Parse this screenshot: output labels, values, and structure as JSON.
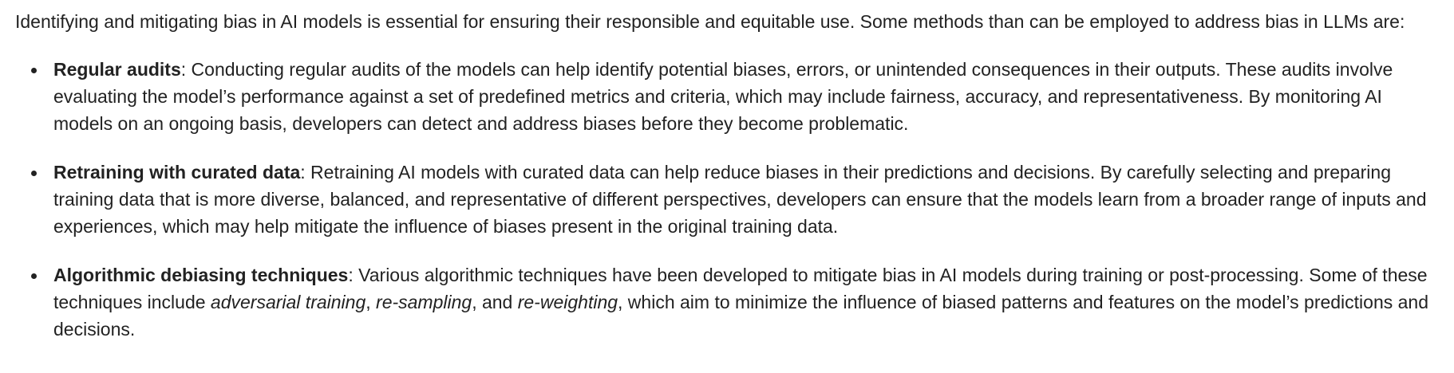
{
  "intro": "Identifying and mitigating bias in AI models is essential for ensuring their responsible and equitable use. Some methods than can be employed to address bias in LLMs are:",
  "items": [
    {
      "term": "Regular audits",
      "text": ": Conducting regular audits of the models can help identify potential biases, errors, or unintended consequences in their outputs. These audits involve evaluating the model’s performance against a set of predefined metrics and criteria, which may include fairness, accuracy, and representativeness. By monitoring AI models on an ongoing basis, developers can detect and address biases before they become problematic."
    },
    {
      "term": "Retraining with curated data",
      "text": ": Retraining AI models with curated data can help reduce biases in their predictions and decisions. By carefully selecting and preparing training data that is more diverse, balanced, and representative of different perspectives, developers can ensure that the models learn from a broader range of inputs and experiences, which may help mitigate the influence of biases present in the original training data."
    },
    {
      "term": "Algorithmic debiasing techniques",
      "text_1": ": Various algorithmic techniques have been developed to mitigate bias in AI models during training or post-processing. Some of these techniques include ",
      "em_1": "adversarial training",
      "sep_1": ", ",
      "em_2": "re-sampling",
      "sep_2": ", and ",
      "em_3": "re-weighting",
      "text_2": ", which aim to minimize the influence of biased patterns and features on the model’s predictions and decisions."
    }
  ]
}
